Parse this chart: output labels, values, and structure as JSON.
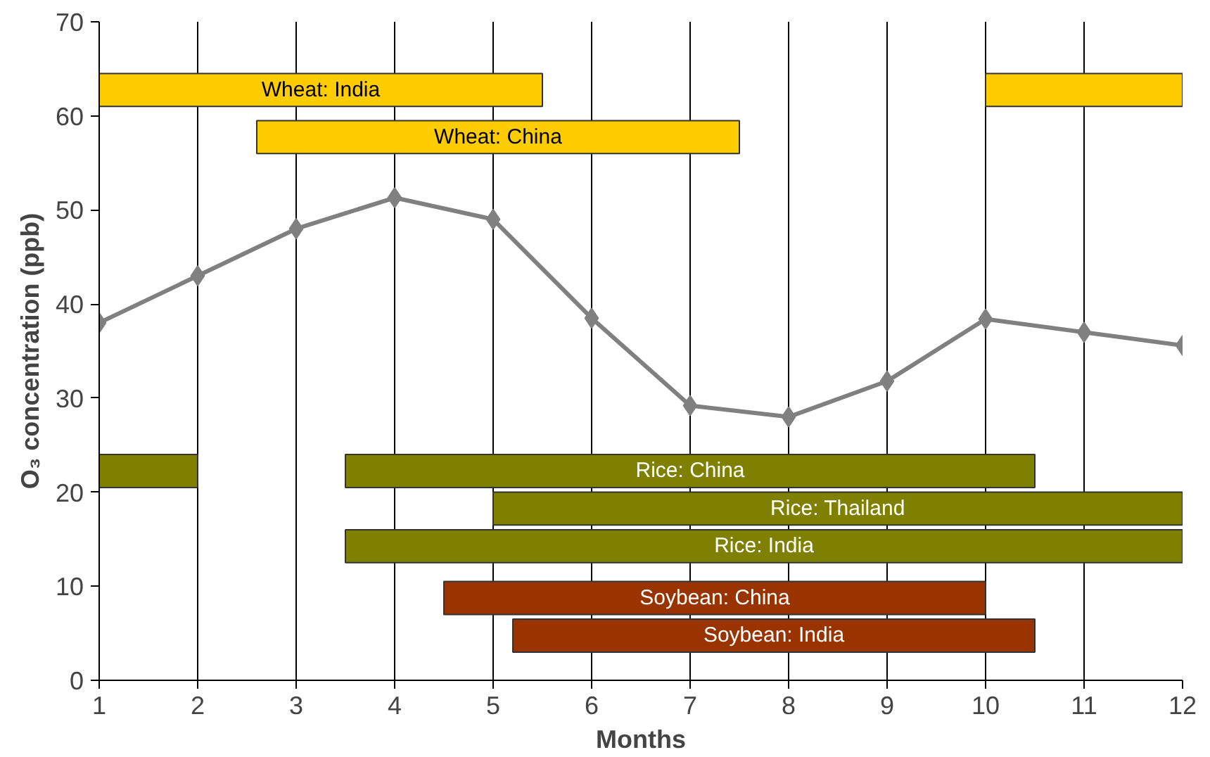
{
  "chart_data": {
    "type": "line",
    "xlabel": "Months",
    "ylabel": "O₃ concentration (ppb)",
    "xlim": [
      1,
      12
    ],
    "ylim": [
      0,
      70
    ],
    "xticks": [
      1,
      2,
      3,
      4,
      5,
      6,
      7,
      8,
      9,
      10,
      11,
      12
    ],
    "yticks": [
      0,
      10,
      20,
      30,
      40,
      50,
      60,
      70
    ],
    "grid": "x",
    "marker": "diamond",
    "x": [
      1,
      2,
      3,
      4,
      5,
      6,
      7,
      8,
      9,
      10,
      11,
      12
    ],
    "series": [
      {
        "color": "#808080",
        "values": [
          38,
          43,
          48,
          51.3,
          49,
          38.5,
          29.2,
          28,
          31.8,
          38.4,
          37,
          35.6
        ]
      }
    ],
    "bands": [
      {
        "axis": "x",
        "from": 1,
        "to": 5.5,
        "label": "Wheat: India",
        "color": "#ffcc00"
      },
      {
        "axis": "x",
        "from": 10,
        "to": 12,
        "label": null,
        "color": "#ffcc00"
      },
      {
        "axis": "x",
        "from": 2.6,
        "to": 7.5,
        "label": "Wheat: China",
        "color": "#ffcc00"
      },
      {
        "axis": "x",
        "from": 1,
        "to": 2,
        "label": null,
        "color": "#808000"
      },
      {
        "axis": "x",
        "from": 3.5,
        "to": 10.5,
        "label": "Rice: China",
        "color": "#808000"
      },
      {
        "axis": "x",
        "from": 5,
        "to": 12,
        "label": "Rice: Thailand",
        "color": "#808000"
      },
      {
        "axis": "x",
        "from": 3.5,
        "to": 12,
        "label": "Rice: India",
        "color": "#808000"
      },
      {
        "axis": "x",
        "from": 4.5,
        "to": 10,
        "label": "Soybean: China",
        "color": "#993300"
      },
      {
        "axis": "x",
        "from": 5.2,
        "to": 10.5,
        "label": "Soybean: India",
        "color": "#993300"
      }
    ]
  }
}
